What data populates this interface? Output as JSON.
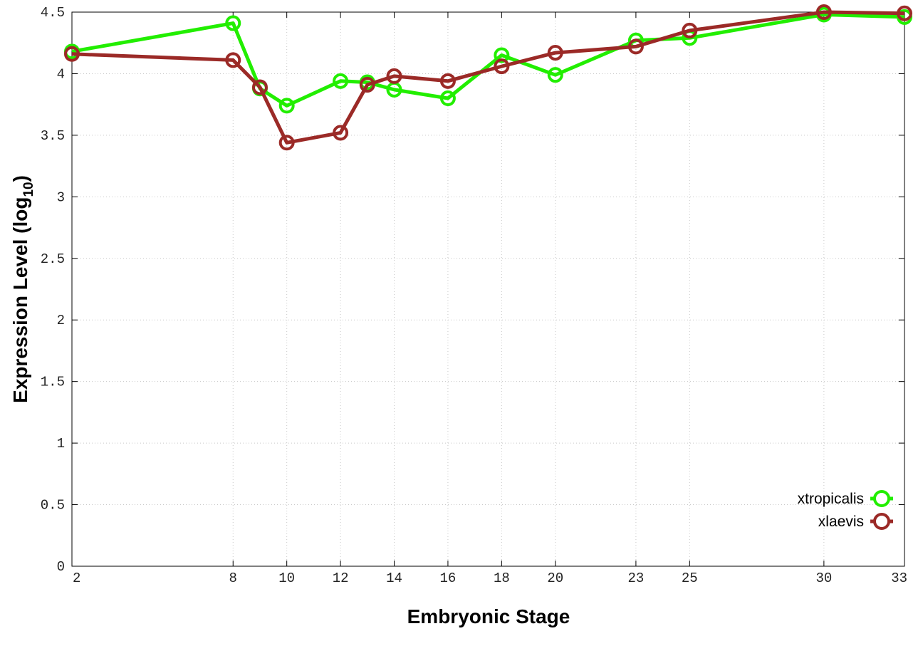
{
  "chart_data": {
    "type": "line",
    "title": "",
    "xlabel": "Embryonic Stage",
    "ylabel": {
      "main": "Expression Level (log",
      "subscript": "10",
      "close": ")"
    },
    "x_ticks": [
      "2",
      "8",
      "10",
      "12",
      "14",
      "16",
      "18",
      "20",
      "23",
      "25",
      "30",
      "33"
    ],
    "y_ticks": [
      "0",
      "0.5",
      "1",
      "1.5",
      "2",
      "2.5",
      "3",
      "3.5",
      "4",
      "4.5"
    ],
    "ylim": [
      0,
      4.5
    ],
    "grid": true,
    "legend_position": "bottom-right",
    "x": [
      2,
      8,
      9,
      10,
      12,
      13,
      14,
      16,
      18,
      20,
      23,
      25,
      30,
      33
    ],
    "series": [
      {
        "name": "xtropicalis",
        "color": "#22ee00",
        "values": [
          4.18,
          4.41,
          3.88,
          3.74,
          3.94,
          3.93,
          3.87,
          3.8,
          4.15,
          3.99,
          4.27,
          4.29,
          4.48,
          4.46
        ]
      },
      {
        "name": "xlaevis",
        "color": "#9b2a27",
        "values": [
          4.16,
          4.11,
          3.89,
          3.44,
          3.52,
          3.91,
          3.98,
          3.94,
          4.06,
          4.17,
          4.22,
          4.35,
          4.5,
          4.49
        ]
      }
    ]
  }
}
